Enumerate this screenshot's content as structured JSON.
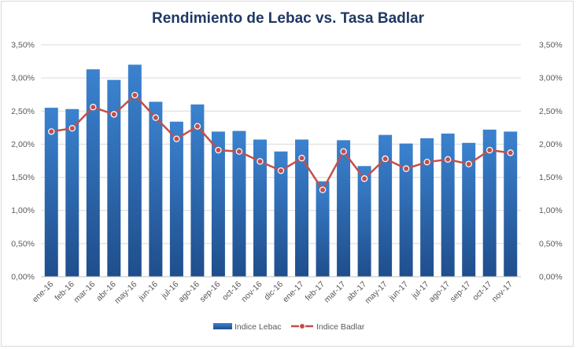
{
  "chart_data": {
    "type": "bar",
    "title": "Rendimiento de Lebac vs. Tasa Badlar",
    "categories": [
      "ene-16",
      "feb-16",
      "mar-16",
      "abr-16",
      "may-16",
      "jun-16",
      "jul-16",
      "ago-16",
      "sep-16",
      "oct-16",
      "nov-16",
      "dic-16",
      "ene-17",
      "feb-17",
      "mar-17",
      "abr-17",
      "may-17",
      "jun-17",
      "jul-17",
      "ago-17",
      "sep-17",
      "oct-17",
      "nov-17"
    ],
    "series": [
      {
        "name": "Indice Lebac",
        "type": "bar",
        "color": "#2e75b6",
        "values": [
          2.55,
          2.53,
          3.13,
          2.97,
          3.2,
          2.64,
          2.34,
          2.6,
          2.19,
          2.2,
          2.07,
          1.89,
          2.07,
          1.44,
          2.06,
          1.67,
          2.14,
          2.01,
          2.09,
          2.16,
          2.02,
          2.22,
          2.19
        ]
      },
      {
        "name": "Indice Badlar",
        "type": "line",
        "color": "#c0504d",
        "values": [
          2.19,
          2.24,
          2.56,
          2.45,
          2.74,
          2.4,
          2.08,
          2.27,
          1.91,
          1.89,
          1.74,
          1.6,
          1.79,
          1.31,
          1.89,
          1.48,
          1.78,
          1.63,
          1.73,
          1.77,
          1.7,
          1.91,
          1.87
        ]
      }
    ],
    "ylim": [
      0,
      3.5
    ],
    "y_ticks": [
      "0,00%",
      "0,50%",
      "1,00%",
      "1,50%",
      "2,00%",
      "2,50%",
      "3,00%",
      "3,50%"
    ],
    "y_tick_values": [
      0,
      0.5,
      1.0,
      1.5,
      2.0,
      2.5,
      3.0,
      3.5
    ],
    "secondary_y_ticks": [
      "0,00%",
      "0,50%",
      "1,00%",
      "1,50%",
      "2,00%",
      "2,50%",
      "3,00%",
      "3,50%"
    ],
    "grid": true,
    "legend_position": "bottom"
  }
}
